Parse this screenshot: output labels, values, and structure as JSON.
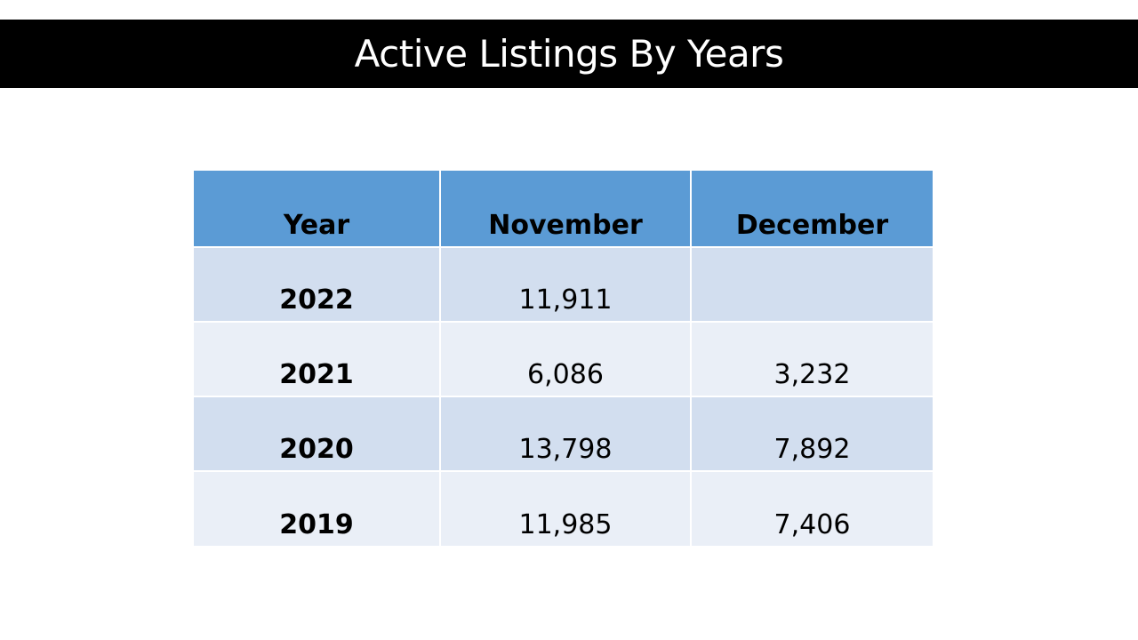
{
  "title": "Active Listings By Years",
  "table": {
    "headers": [
      "Year",
      "November",
      "December"
    ],
    "rows": [
      {
        "year": "2022",
        "november": "11,911",
        "december": ""
      },
      {
        "year": "2021",
        "november": "6,086",
        "december": "3,232"
      },
      {
        "year": "2020",
        "november": "13,798",
        "december": "7,892"
      },
      {
        "year": "2019",
        "november": "11,985",
        "december": "7,406"
      }
    ]
  },
  "colors": {
    "title_bar": "#000000",
    "title_text": "#ffffff",
    "header_fill": "#5b9bd5",
    "row_band_dark": "#d2deef",
    "row_band_light": "#eaeff7"
  }
}
